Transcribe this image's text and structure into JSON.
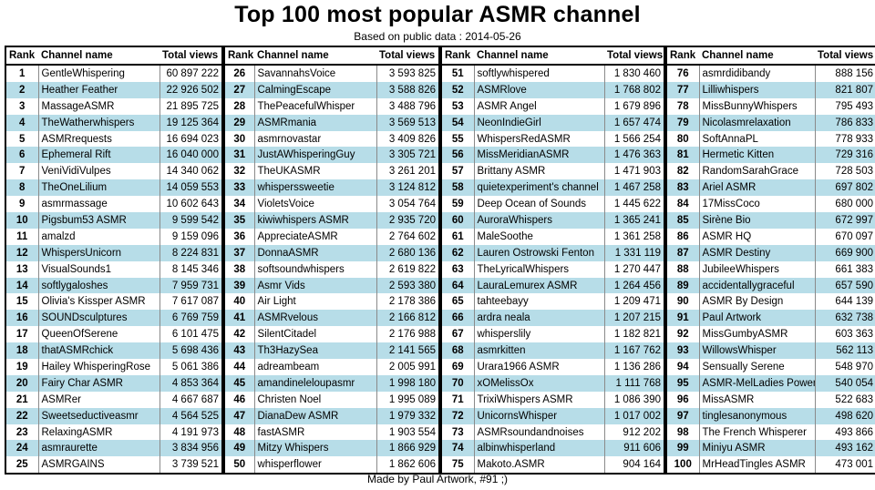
{
  "title": "Top 100 most popular ASMR channel",
  "subtitle": "Based on public data : 2014-05-26",
  "footer": "Made by Paul Artwork, #91 ;)",
  "headers": {
    "rank": "Rank",
    "name": "Channel name",
    "views": "Total views"
  },
  "colors": {
    "stripe": "#b7dde8",
    "white": "#ffffff"
  },
  "rows": [
    {
      "rank": "1",
      "name": "GentleWhispering",
      "views": "60 897 222"
    },
    {
      "rank": "2",
      "name": "Heather Feather",
      "views": "22 926 502"
    },
    {
      "rank": "3",
      "name": "MassageASMR",
      "views": "21 895 725"
    },
    {
      "rank": "4",
      "name": "TheWatherwhispers",
      "views": "19 125 364"
    },
    {
      "rank": "5",
      "name": "ASMRrequests",
      "views": "16 694 023"
    },
    {
      "rank": "6",
      "name": "Ephemeral Rift",
      "views": "16 040 000"
    },
    {
      "rank": "7",
      "name": "VeniVidiVulpes",
      "views": "14 340 062"
    },
    {
      "rank": "8",
      "name": "TheOneLilium",
      "views": "14 059 553"
    },
    {
      "rank": "9",
      "name": "asmrmassage",
      "views": "10 602 643"
    },
    {
      "rank": "10",
      "name": "Pigsbum53 ASMR",
      "views": "9 599 542"
    },
    {
      "rank": "11",
      "name": "amalzd",
      "views": "9 159 096"
    },
    {
      "rank": "12",
      "name": "WhispersUnicorn",
      "views": "8 224 831"
    },
    {
      "rank": "13",
      "name": "VisualSounds1",
      "views": "8 145 346"
    },
    {
      "rank": "14",
      "name": "softlygaloshes",
      "views": "7 959 731"
    },
    {
      "rank": "15",
      "name": "Olivia's Kissper ASMR",
      "views": "7 617 087"
    },
    {
      "rank": "16",
      "name": "SOUNDsculptures",
      "views": "6 769 759"
    },
    {
      "rank": "17",
      "name": "QueenOfSerene",
      "views": "6 101 475"
    },
    {
      "rank": "18",
      "name": "thatASMRchick",
      "views": "5 698 436"
    },
    {
      "rank": "19",
      "name": "Hailey WhisperingRose",
      "views": "5 061 386"
    },
    {
      "rank": "20",
      "name": "Fairy Char ASMR",
      "views": "4 853 364"
    },
    {
      "rank": "21",
      "name": "ASMRer",
      "views": "4 667 687"
    },
    {
      "rank": "22",
      "name": "Sweetseductiveasmr",
      "views": "4 564 525"
    },
    {
      "rank": "23",
      "name": "RelaxingASMR",
      "views": "4 191 973"
    },
    {
      "rank": "24",
      "name": "asmraurette",
      "views": "3 834 956"
    },
    {
      "rank": "25",
      "name": "ASMRGAINS",
      "views": "3 739 521"
    },
    {
      "rank": "26",
      "name": "SavannahsVoice",
      "views": "3 593 825"
    },
    {
      "rank": "27",
      "name": "CalmingEscape",
      "views": "3 588 826"
    },
    {
      "rank": "28",
      "name": "ThePeacefulWhisper",
      "views": "3 488 796"
    },
    {
      "rank": "29",
      "name": "ASMRmania",
      "views": "3 569 513"
    },
    {
      "rank": "30",
      "name": "asmrnovastar",
      "views": "3 409 826"
    },
    {
      "rank": "31",
      "name": "JustAWhisperingGuy",
      "views": "3 305 721"
    },
    {
      "rank": "32",
      "name": "TheUKASMR",
      "views": "3 261 201"
    },
    {
      "rank": "33",
      "name": "whisperssweetie",
      "views": "3 124 812"
    },
    {
      "rank": "34",
      "name": "VioletsVoice",
      "views": "3 054 764"
    },
    {
      "rank": "35",
      "name": "kiwiwhispers ASMR",
      "views": "2 935 720"
    },
    {
      "rank": "36",
      "name": "AppreciateASMR",
      "views": "2 764 602"
    },
    {
      "rank": "37",
      "name": "DonnaASMR",
      "views": "2 680 136"
    },
    {
      "rank": "38",
      "name": "softsoundwhispers",
      "views": "2 619 822"
    },
    {
      "rank": "39",
      "name": "Asmr Vids",
      "views": "2 593 380"
    },
    {
      "rank": "40",
      "name": "Air Light",
      "views": "2 178 386"
    },
    {
      "rank": "41",
      "name": "ASMRvelous",
      "views": "2 166 812"
    },
    {
      "rank": "42",
      "name": "SilentCitadel",
      "views": "2 176 988"
    },
    {
      "rank": "43",
      "name": "Th3HazySea",
      "views": "2 141 565"
    },
    {
      "rank": "44",
      "name": "adreambeam",
      "views": "2 005 991"
    },
    {
      "rank": "45",
      "name": "amandineleloupasmr",
      "views": "1 998 180"
    },
    {
      "rank": "46",
      "name": "Christen Noel",
      "views": "1 995 089"
    },
    {
      "rank": "47",
      "name": "DianaDew ASMR",
      "views": "1 979 332"
    },
    {
      "rank": "48",
      "name": "fastASMR",
      "views": "1 903 554"
    },
    {
      "rank": "49",
      "name": "Mitzy Whispers",
      "views": "1 866 929"
    },
    {
      "rank": "50",
      "name": "whisperflower",
      "views": "1 862 606"
    },
    {
      "rank": "51",
      "name": "softlywhispered",
      "views": "1 830 460"
    },
    {
      "rank": "52",
      "name": "ASMRlove",
      "views": "1 768 802"
    },
    {
      "rank": "53",
      "name": "ASMR Angel",
      "views": "1 679 896"
    },
    {
      "rank": "54",
      "name": "NeonIndieGirl",
      "views": "1 657 474"
    },
    {
      "rank": "55",
      "name": "WhispersRedASMR",
      "views": "1 566 254"
    },
    {
      "rank": "56",
      "name": "MissMeridianASMR",
      "views": "1 476 363"
    },
    {
      "rank": "57",
      "name": "Brittany ASMR",
      "views": "1 471 903"
    },
    {
      "rank": "58",
      "name": "quietexperiment's channel",
      "views": "1 467 258"
    },
    {
      "rank": "59",
      "name": "Deep Ocean of Sounds",
      "views": "1 445 622"
    },
    {
      "rank": "60",
      "name": "AuroraWhispers",
      "views": "1 365 241"
    },
    {
      "rank": "61",
      "name": "MaleSoothe",
      "views": "1 361 258"
    },
    {
      "rank": "62",
      "name": "Lauren Ostrowski Fenton",
      "views": "1 331 119"
    },
    {
      "rank": "63",
      "name": "TheLyricalWhispers",
      "views": "1 270 447"
    },
    {
      "rank": "64",
      "name": "LauraLemurex ASMR",
      "views": "1 264 456"
    },
    {
      "rank": "65",
      "name": "tahteebayy",
      "views": "1 209 471"
    },
    {
      "rank": "66",
      "name": "ardra neala",
      "views": "1 207 215"
    },
    {
      "rank": "67",
      "name": "whisperslily",
      "views": "1 182 821"
    },
    {
      "rank": "68",
      "name": "asmrkitten",
      "views": "1 167 762"
    },
    {
      "rank": "69",
      "name": "Urara1966 ASMR",
      "views": "1 136 286"
    },
    {
      "rank": "70",
      "name": "xOMelissOx",
      "views": "1 111 768"
    },
    {
      "rank": "71",
      "name": "TrixiWhispers ASMR",
      "views": "1 086 390"
    },
    {
      "rank": "72",
      "name": "UnicornsWhisper",
      "views": "1 017 002"
    },
    {
      "rank": "73",
      "name": "ASMRsoundandnoises",
      "views": "912 202"
    },
    {
      "rank": "74",
      "name": "albinwhisperland",
      "views": "911 606"
    },
    {
      "rank": "75",
      "name": "Makoto.ASMR",
      "views": "904 164"
    },
    {
      "rank": "76",
      "name": "asmrdidibandy",
      "views": "888 156"
    },
    {
      "rank": "77",
      "name": "Lilliwhispers",
      "views": "821 807"
    },
    {
      "rank": "78",
      "name": "MissBunnyWhispers",
      "views": "795 493"
    },
    {
      "rank": "79",
      "name": "Nicolasmrelaxation",
      "views": "786 833"
    },
    {
      "rank": "80",
      "name": "SoftAnnaPL",
      "views": "778 933"
    },
    {
      "rank": "81",
      "name": "Hermetic Kitten",
      "views": "729 316"
    },
    {
      "rank": "82",
      "name": "RandomSarahGrace",
      "views": "728 503"
    },
    {
      "rank": "83",
      "name": "Ariel ASMR",
      "views": "697 802"
    },
    {
      "rank": "84",
      "name": "17MissCoco",
      "views": "680 000"
    },
    {
      "rank": "85",
      "name": "Sirène Bio",
      "views": "672 997"
    },
    {
      "rank": "86",
      "name": "ASMR HQ",
      "views": "670 097"
    },
    {
      "rank": "87",
      "name": "ASMR Destiny",
      "views": "669 900"
    },
    {
      "rank": "88",
      "name": "JubileeWhispers",
      "views": "661 383"
    },
    {
      "rank": "89",
      "name": "accidentallygraceful",
      "views": "657 590"
    },
    {
      "rank": "90",
      "name": "ASMR By Design",
      "views": "644 139"
    },
    {
      "rank": "91",
      "name": "Paul Artwork",
      "views": "632 738"
    },
    {
      "rank": "92",
      "name": "MissGumbyASMR",
      "views": "603 363"
    },
    {
      "rank": "93",
      "name": "WillowsWhisper",
      "views": "562 113"
    },
    {
      "rank": "94",
      "name": "Sensually Serene",
      "views": "548 970"
    },
    {
      "rank": "95",
      "name": "ASMR-MelLadies Power",
      "views": "540 054"
    },
    {
      "rank": "96",
      "name": "MissASMR",
      "views": "522 683"
    },
    {
      "rank": "97",
      "name": "tinglesanonymous",
      "views": "498 620"
    },
    {
      "rank": "98",
      "name": "The French Whisperer",
      "views": "493 866"
    },
    {
      "rank": "99",
      "name": "Miniyu ASMR",
      "views": "493 162"
    },
    {
      "rank": "100",
      "name": "MrHeadTingles ASMR",
      "views": "473 001"
    }
  ]
}
